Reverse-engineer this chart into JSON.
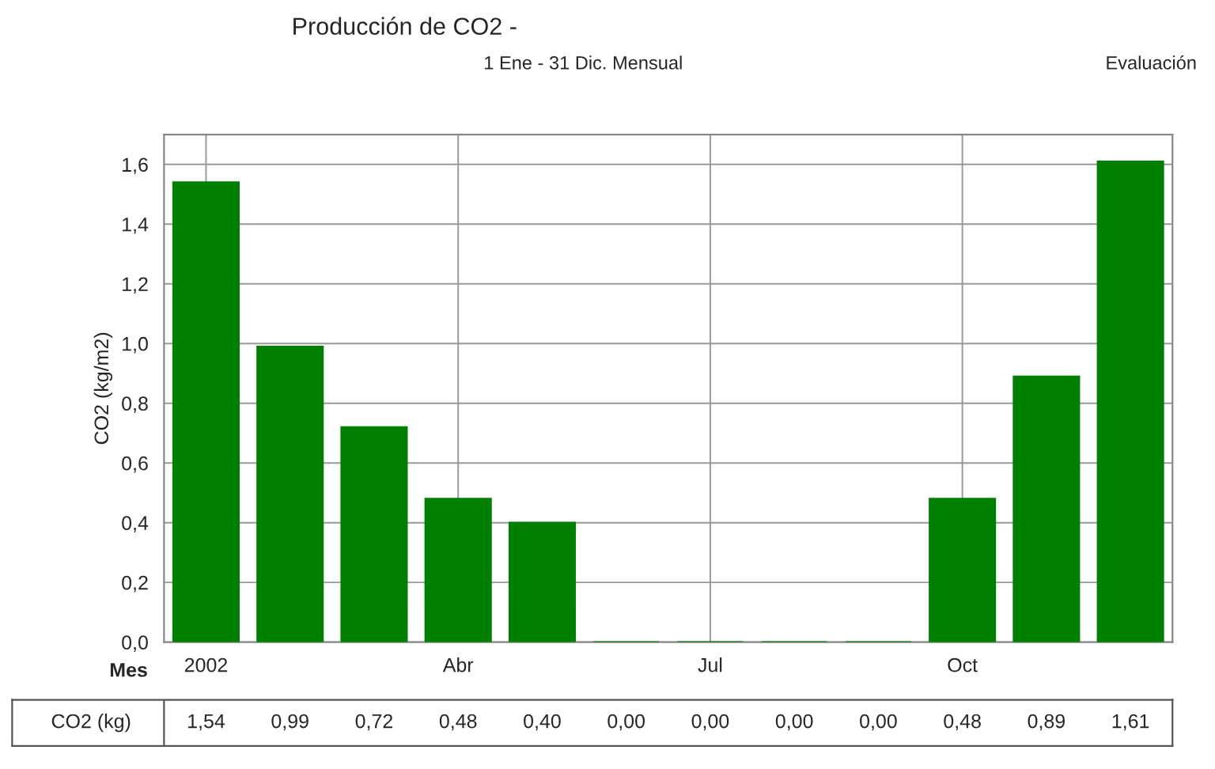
{
  "chart_data": {
    "type": "bar",
    "title": "Producción de CO2 -",
    "subtitle": "1 Ene - 31 Dic. Mensual",
    "ylabel": "CO2 (kg/m2)",
    "xlabel": "Mes",
    "annotations": [
      "Evaluación"
    ],
    "categories": [
      "2002",
      null,
      null,
      "Abr",
      null,
      null,
      "Jul",
      null,
      null,
      "Oct",
      null,
      null
    ],
    "series": [
      {
        "name": "CO2 (kg)",
        "color": "#008000",
        "values": [
          1.54,
          0.99,
          0.72,
          0.48,
          0.4,
          0.0,
          0.0,
          0.0,
          0.0,
          0.48,
          0.89,
          1.61
        ],
        "value_labels": [
          "1,54",
          "0,99",
          "0,72",
          "0,48",
          "0,40",
          "0,00",
          "0,00",
          "0,00",
          "0,00",
          "0,48",
          "0,89",
          "1,61"
        ]
      }
    ],
    "ylim": [
      0,
      1.7
    ],
    "yticks": [
      {
        "value": 0,
        "label": "0,0"
      },
      {
        "value": 0.2,
        "label": "0,2"
      },
      {
        "value": 0.4,
        "label": "0,4"
      },
      {
        "value": 0.6,
        "label": "0,6"
      },
      {
        "value": 0.8,
        "label": "0,8"
      },
      {
        "value": 1.0,
        "label": "1,0"
      },
      {
        "value": 1.2,
        "label": "1,2"
      },
      {
        "value": 1.4,
        "label": "1,4"
      },
      {
        "value": 1.6,
        "label": "1,6"
      }
    ],
    "grid": true,
    "legend": false
  }
}
